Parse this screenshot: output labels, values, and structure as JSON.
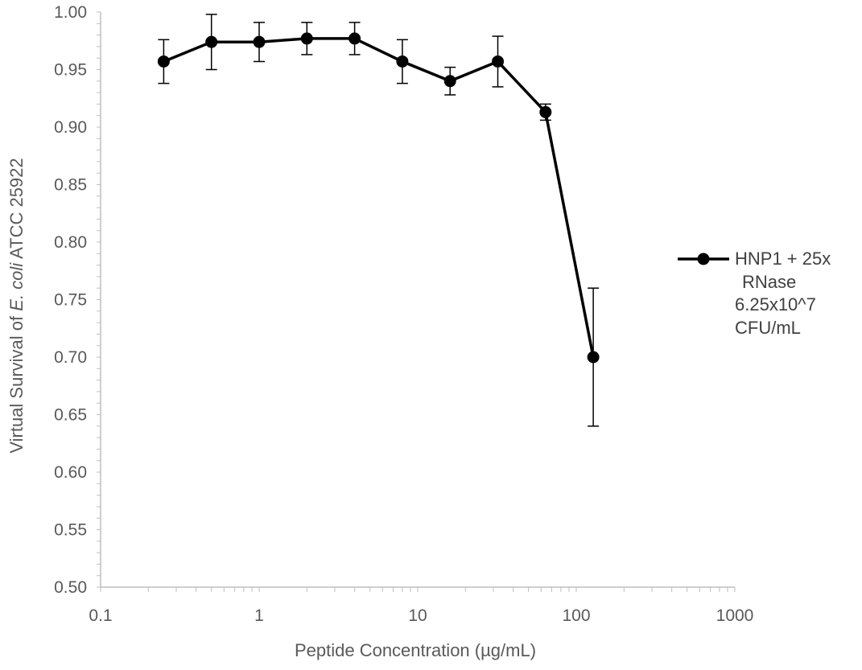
{
  "chart_data": {
    "type": "scatter",
    "xlabel": "Peptide Concentration (µg/mL)",
    "ylabel": {
      "prefix": "Virtual Survival of ",
      "italic": "E. coli",
      "suffix": " ATCC 25922"
    },
    "x_scale": "log",
    "xlim": [
      0.1,
      1000
    ],
    "ylim": [
      0.5,
      1.0
    ],
    "x_ticks": [
      0.1,
      1,
      10,
      100,
      1000
    ],
    "x_tick_labels": [
      "0.1",
      "1",
      "10",
      "100",
      "1000"
    ],
    "y_ticks": [
      0.5,
      0.55,
      0.6,
      0.65,
      0.7,
      0.75,
      0.8,
      0.85,
      0.9,
      0.95,
      1.0
    ],
    "y_tick_labels": [
      "0.50",
      "0.55",
      "0.60",
      "0.65",
      "0.70",
      "0.75",
      "0.80",
      "0.85",
      "0.90",
      "0.95",
      "1.00"
    ],
    "grid": false,
    "legend_position": "right",
    "legend_lines": [
      "HNP1 + 25x",
      "RNase",
      "6.25x10^7",
      "CFU/mL"
    ],
    "series": [
      {
        "name": "HNP1 + 25x RNase 6.25x10^7 CFU/mL",
        "color": "#000000",
        "x": [
          0.25,
          0.5,
          1,
          2,
          4,
          8,
          16,
          32,
          64,
          128
        ],
        "y": [
          0.957,
          0.974,
          0.974,
          0.977,
          0.977,
          0.957,
          0.94,
          0.957,
          0.913,
          0.7
        ],
        "y_err_low": [
          0.938,
          0.95,
          0.957,
          0.963,
          0.963,
          0.938,
          0.928,
          0.935,
          0.906,
          0.64
        ],
        "y_err_high": [
          0.976,
          0.998,
          0.991,
          0.991,
          0.991,
          0.976,
          0.952,
          0.979,
          0.92,
          0.76
        ]
      }
    ]
  }
}
